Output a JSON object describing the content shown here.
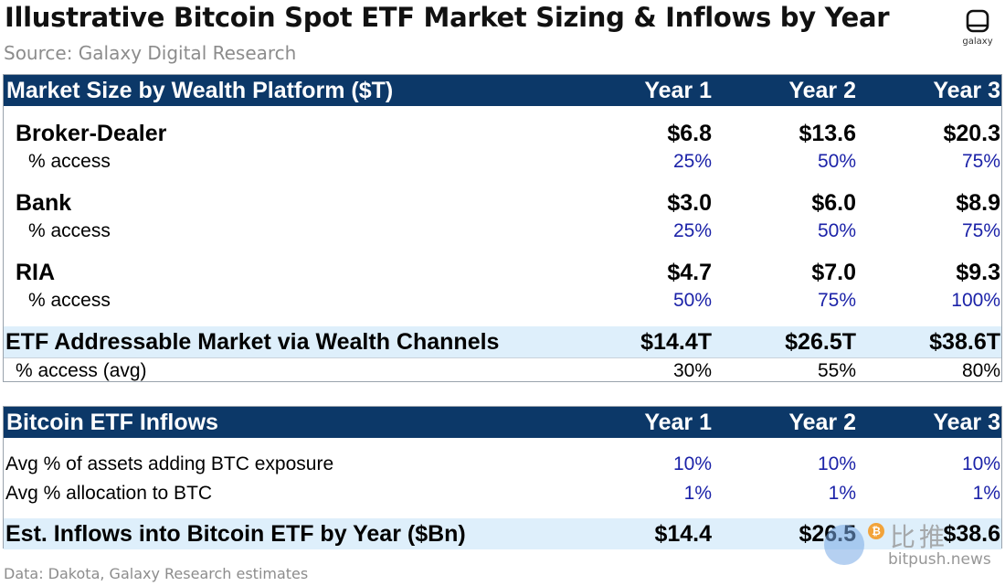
{
  "header": {
    "title": "Illustrative Bitcoin Spot ETF Market Sizing & Inflows by Year",
    "source": "Source: Galaxy Digital Research",
    "logo_text": "galaxy"
  },
  "table1": {
    "header": {
      "label": "Market Size by Wealth Platform ($T)",
      "y1": "Year 1",
      "y2": "Year 2",
      "y3": "Year 3"
    },
    "broker": {
      "label": "Broker-Dealer",
      "y1": "$6.8",
      "y2": "$13.6",
      "y3": "$20.3"
    },
    "broker_access": {
      "label": "% access",
      "y1": "25%",
      "y2": "50%",
      "y3": "75%"
    },
    "bank": {
      "label": "Bank",
      "y1": "$3.0",
      "y2": "$6.0",
      "y3": "$8.9"
    },
    "bank_access": {
      "label": "% access",
      "y1": "25%",
      "y2": "50%",
      "y3": "75%"
    },
    "ria": {
      "label": "RIA",
      "y1": "$4.7",
      "y2": "$7.0",
      "y3": "$9.3"
    },
    "ria_access": {
      "label": "% access",
      "y1": "50%",
      "y2": "75%",
      "y3": "100%"
    },
    "total": {
      "label": "ETF Addressable Market via Wealth Channels",
      "y1": "$14.4T",
      "y2": "$26.5T",
      "y3": "$38.6T"
    },
    "avg_access": {
      "label": "% access (avg)",
      "y1": "30%",
      "y2": "55%",
      "y3": "80%"
    }
  },
  "table2": {
    "header": {
      "label": "Bitcoin ETF Inflows",
      "y1": "Year 1",
      "y2": "Year 2",
      "y3": "Year 3"
    },
    "adding": {
      "label": "Avg % of assets adding BTC exposure",
      "y1": "10%",
      "y2": "10%",
      "y3": "10%"
    },
    "allocation": {
      "label": "Avg % allocation to BTC",
      "y1": "1%",
      "y2": "1%",
      "y3": "1%"
    },
    "inflows": {
      "label": "Est. Inflows into Bitcoin ETF by Year ($Bn)",
      "y1": "$14.4",
      "y2": "$26.5",
      "y3": "$38.6"
    }
  },
  "footer": {
    "text": "Data: Dakota, Galaxy Research estimates"
  },
  "watermark": {
    "cn": "比推",
    "url": "bitpush.news",
    "coin": "₿"
  },
  "colors": {
    "header_bg": "#0c3868",
    "band_bg": "#deeffb",
    "blue_value": "#1b22a8"
  }
}
